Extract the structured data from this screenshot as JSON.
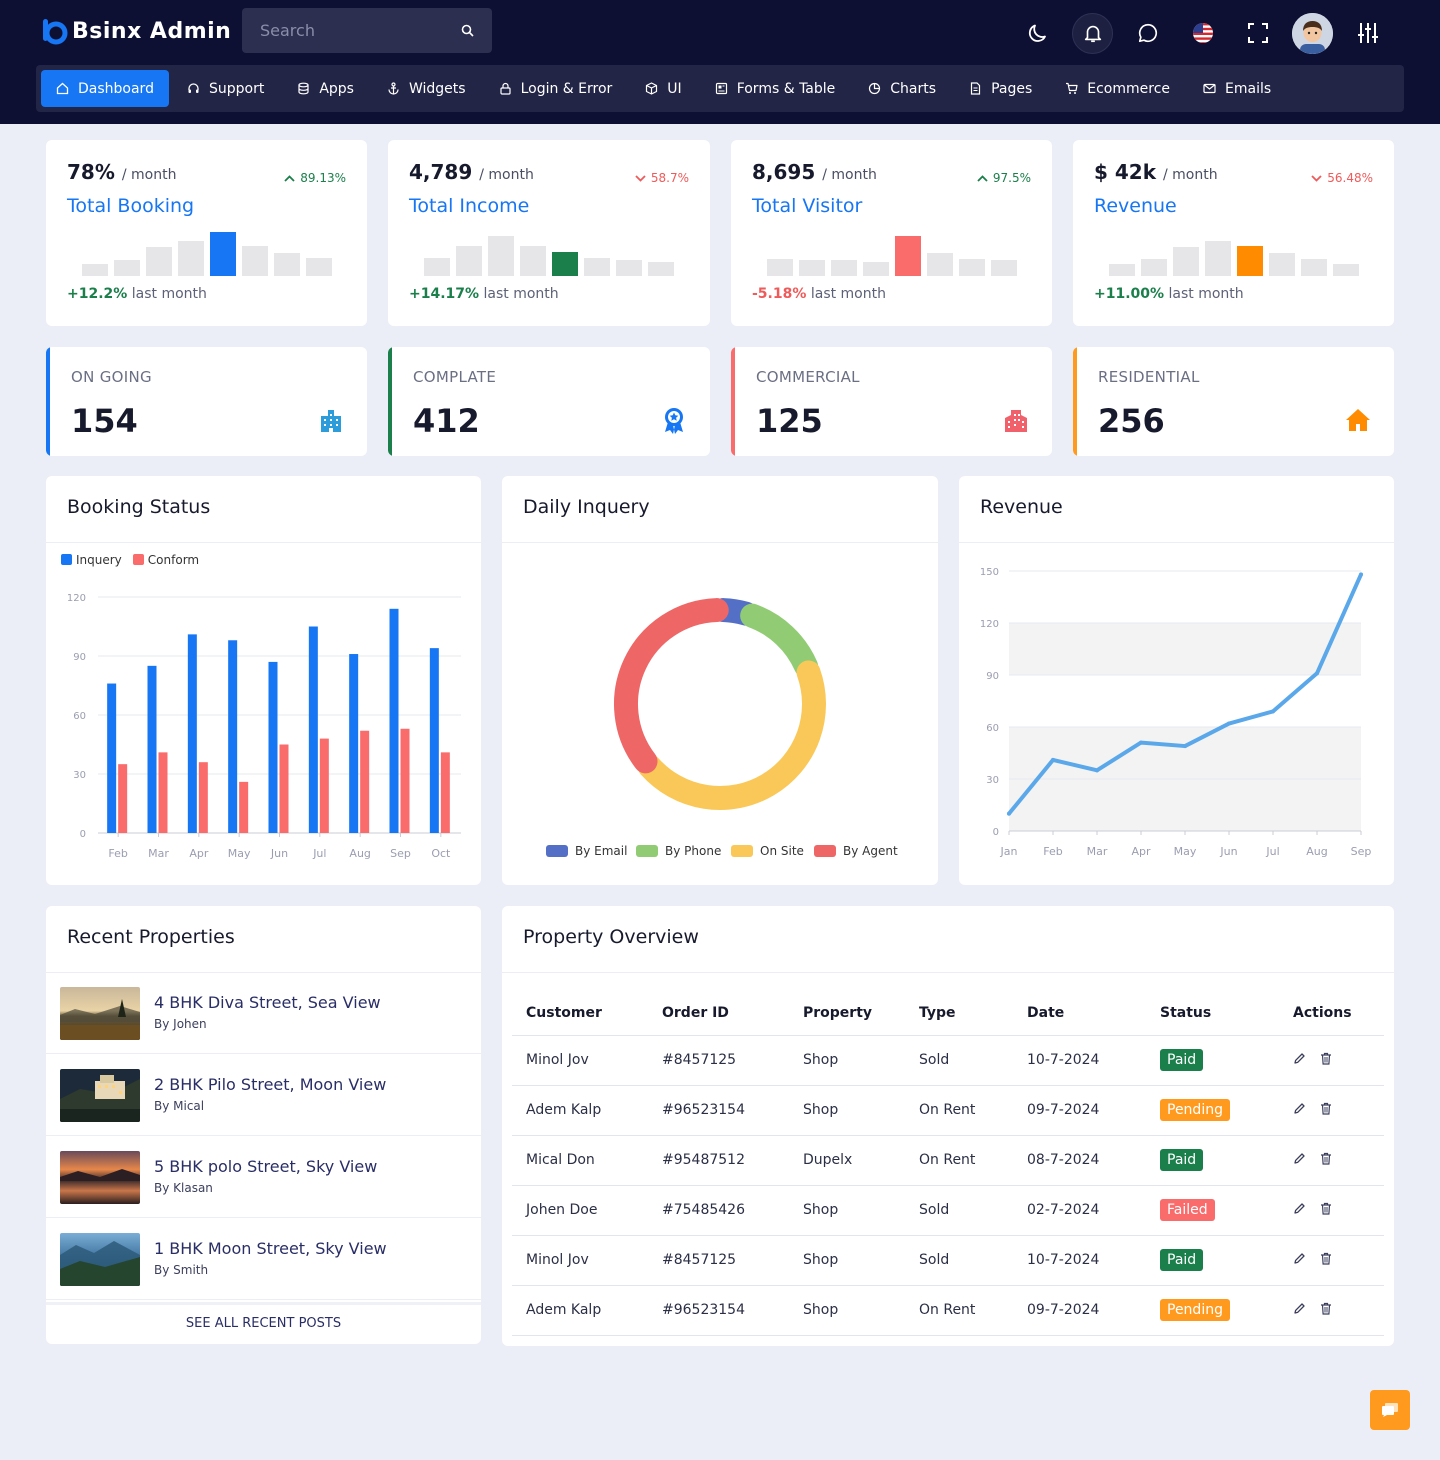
{
  "app": {
    "logo_text": "Bsinx Admin"
  },
  "search": {
    "placeholder": "Search"
  },
  "nav": [
    {
      "label": "Dashboard",
      "icon": "home-icon"
    },
    {
      "label": "Support",
      "icon": "headset-icon"
    },
    {
      "label": "Apps",
      "icon": "database-icon"
    },
    {
      "label": "Widgets",
      "icon": "anchor-icon"
    },
    {
      "label": "Login & Error",
      "icon": "lock-icon"
    },
    {
      "label": "UI",
      "icon": "cube-icon"
    },
    {
      "label": "Forms & Table",
      "icon": "form-icon"
    },
    {
      "label": "Charts",
      "icon": "pie-icon"
    },
    {
      "label": "Pages",
      "icon": "page-icon"
    },
    {
      "label": "Ecommerce",
      "icon": "cart-icon"
    },
    {
      "label": "Emails",
      "icon": "mail-icon"
    }
  ],
  "stats": [
    {
      "value": "78%",
      "unit": "/ month",
      "change": "89.13%",
      "direction": "up",
      "name": "Total Booking",
      "delta": "+12.2%",
      "delta_text": "last month",
      "delta_color": "#1a7f4b",
      "bars": [
        0.25,
        0.35,
        0.62,
        0.75,
        0.95,
        0.65,
        0.5,
        0.4
      ],
      "highlight": 4,
      "highlight_color": "#1676f3"
    },
    {
      "value": "4,789",
      "unit": "/ month",
      "change": "58.7%",
      "direction": "down",
      "name": "Total Income",
      "delta": "+14.17%",
      "delta_text": "last month",
      "delta_color": "#1a7f4b",
      "bars": [
        0.4,
        0.65,
        0.88,
        0.65,
        0.52,
        0.4,
        0.35,
        0.3
      ],
      "highlight": 4,
      "highlight_color": "#1a7f4b"
    },
    {
      "value": "8,695",
      "unit": "/ month",
      "change": "97.5%",
      "direction": "up",
      "name": "Total Visitor",
      "delta": "-5.18%",
      "delta_text": "last month",
      "delta_color": "#ef5a5a",
      "bars": [
        0.38,
        0.35,
        0.35,
        0.3,
        0.88,
        0.5,
        0.38,
        0.35
      ],
      "highlight": 4,
      "highlight_color": "#fa6b6b"
    },
    {
      "value": "$ 42k",
      "unit": "/ month",
      "change": "56.48%",
      "direction": "down",
      "name": "Revenue",
      "delta": "+11.00%",
      "delta_text": "last month",
      "delta_color": "#1a7f4b",
      "bars": [
        0.25,
        0.38,
        0.62,
        0.75,
        0.65,
        0.5,
        0.38,
        0.25
      ],
      "highlight": 4,
      "highlight_color": "#ff8c00"
    }
  ],
  "counters": [
    {
      "label": "ON GOING",
      "value": "154",
      "color": "#1676f3",
      "icon": "building-icon"
    },
    {
      "label": "COMPLATE",
      "value": "412",
      "color": "#1a7f4b",
      "icon": "award-icon"
    },
    {
      "label": "COMMERCIAL",
      "value": "125",
      "color": "#fa6b6b",
      "icon": "city-icon"
    },
    {
      "label": "RESIDENTIAL",
      "value": "256",
      "color": "#ff9a1f",
      "icon": "house-icon"
    }
  ],
  "booking": {
    "title": "Booking Status"
  },
  "inquery": {
    "title": "Daily Inquery"
  },
  "revenue": {
    "title": "Revenue"
  },
  "chart_data": [
    {
      "type": "bar",
      "title": "Booking Status",
      "categories": [
        "Feb",
        "Mar",
        "Apr",
        "May",
        "Jun",
        "Jul",
        "Aug",
        "Sep",
        "Oct"
      ],
      "series": [
        {
          "name": "Inquery",
          "color": "#1676f3",
          "values": [
            76,
            85,
            101,
            98,
            87,
            105,
            91,
            114,
            94
          ]
        },
        {
          "name": "Conform",
          "color": "#fa6b6b",
          "values": [
            35,
            41,
            36,
            26,
            45,
            48,
            52,
            53,
            41
          ]
        }
      ],
      "ylim": [
        0,
        120
      ],
      "yticks": [
        0,
        30,
        60,
        90,
        120
      ],
      "grid": true,
      "legend": "top-left"
    },
    {
      "type": "pie",
      "title": "Daily Inquery",
      "variant": "donut",
      "slices": [
        {
          "name": "By Email",
          "value": 5,
          "color": "#5470c6"
        },
        {
          "name": "By Phone",
          "value": 14,
          "color": "#91cc75"
        },
        {
          "name": "On Site",
          "value": 45,
          "color": "#fac858"
        },
        {
          "name": "By Agent",
          "value": 36,
          "color": "#ee6666"
        }
      ],
      "legend": "bottom"
    },
    {
      "type": "line",
      "title": "Revenue",
      "categories": [
        "Jan",
        "Feb",
        "Mar",
        "Apr",
        "May",
        "Jun",
        "Jul",
        "Aug",
        "Sep"
      ],
      "series": [
        {
          "name": "",
          "color": "#5aa8ea",
          "values": [
            10,
            41,
            35,
            51,
            49,
            62,
            69,
            91,
            148
          ]
        }
      ],
      "ylim": [
        0,
        150
      ],
      "yticks": [
        0,
        30,
        60,
        90,
        120,
        150
      ],
      "grid": true
    }
  ],
  "recent": {
    "title": "Recent Properties",
    "items": [
      {
        "title": "4 BHK Diva Street, Sea View",
        "by": "By Johen",
        "scene": "meadow"
      },
      {
        "title": "2 BHK Pilo Street, Moon View",
        "by": "By Mical",
        "scene": "night-town"
      },
      {
        "title": "5 BHK polo Street, Sky View",
        "by": "By Klasan",
        "scene": "sunset-lake"
      },
      {
        "title": "1 BHK Moon Street, Sky View",
        "by": "By Smith",
        "scene": "blue-hills"
      }
    ],
    "see_all": "SEE ALL RECENT POSTS"
  },
  "overview": {
    "title": "Property Overview",
    "columns": [
      "Customer",
      "Order ID",
      "Property",
      "Type",
      "Date",
      "Status",
      "Actions"
    ],
    "rows": [
      {
        "customer": "Minol Jov",
        "order": "#8457125",
        "property": "Shop",
        "type": "Sold",
        "date": "10-7-2024",
        "status": "Paid",
        "status_color": "#1a7f4b"
      },
      {
        "customer": "Adem Kalp",
        "order": "#96523154",
        "property": "Shop",
        "type": "On Rent",
        "date": "09-7-2024",
        "status": "Pending",
        "status_color": "#ff9a1f"
      },
      {
        "customer": "Mical Don",
        "order": "#95487512",
        "property": "Dupelx",
        "type": "On Rent",
        "date": "08-7-2024",
        "status": "Paid",
        "status_color": "#1a7f4b"
      },
      {
        "customer": "Johen Doe",
        "order": "#75485426",
        "property": "Shop",
        "type": "Sold",
        "date": "02-7-2024",
        "status": "Failed",
        "status_color": "#fa6b6b"
      },
      {
        "customer": "Minol Jov",
        "order": "#8457125",
        "property": "Shop",
        "type": "Sold",
        "date": "10-7-2024",
        "status": "Paid",
        "status_color": "#1a7f4b"
      },
      {
        "customer": "Adem Kalp",
        "order": "#96523154",
        "property": "Shop",
        "type": "On Rent",
        "date": "09-7-2024",
        "status": "Pending",
        "status_color": "#ff9a1f"
      }
    ]
  }
}
